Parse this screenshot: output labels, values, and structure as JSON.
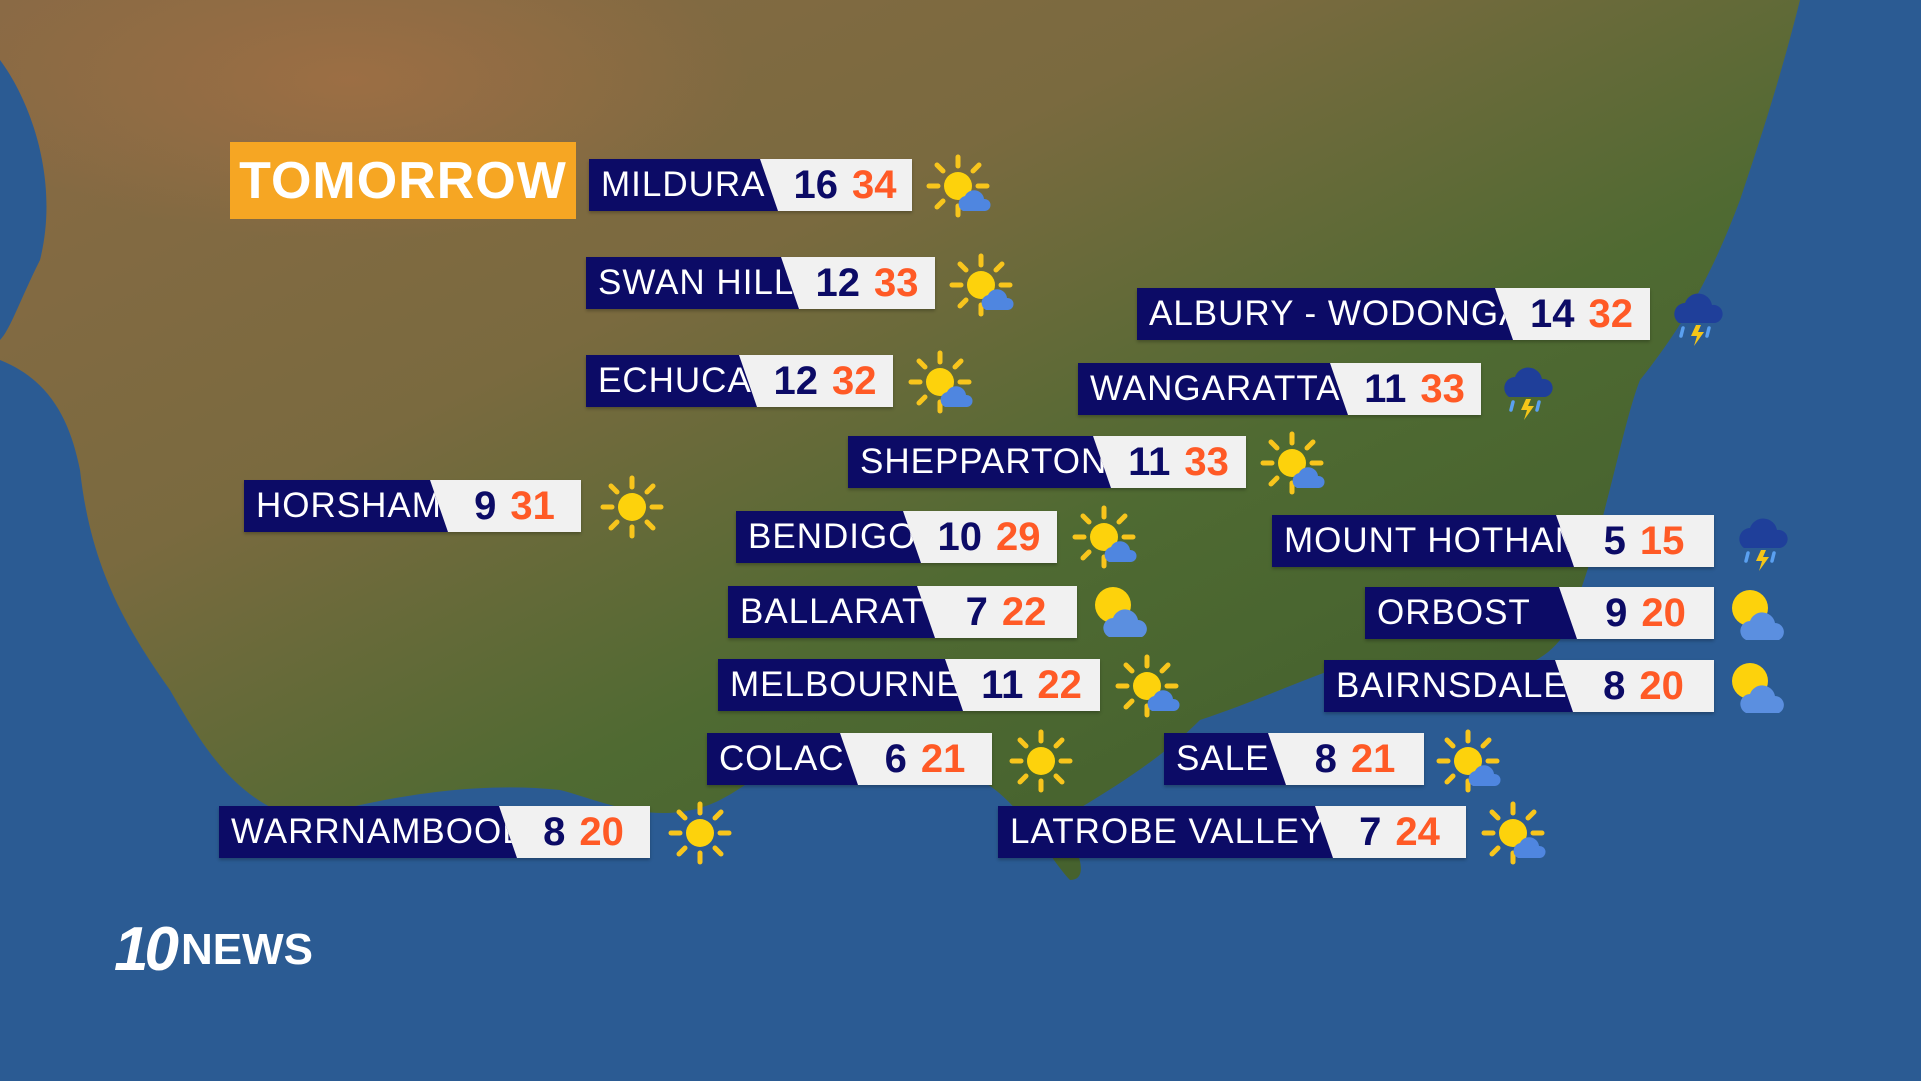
{
  "header": {
    "title": "TOMORROW"
  },
  "brand": {
    "number": "10",
    "name": "NEWS"
  },
  "colors": {
    "name_bg": "#0c0b66",
    "low_temp": "#0c0b66",
    "high_temp": "#ff5a26",
    "title_bg": "#f6a623"
  },
  "locations": [
    {
      "name": "MILDURA",
      "low": "16",
      "high": "34",
      "icon": "sun-with-cloud"
    },
    {
      "name": "SWAN HILL",
      "low": "12",
      "high": "33",
      "icon": "sun-with-cloud"
    },
    {
      "name": "ECHUCA",
      "low": "12",
      "high": "32",
      "icon": "sun-with-cloud"
    },
    {
      "name": "ALBURY - WODONGA",
      "low": "14",
      "high": "32",
      "icon": "thunderstorm"
    },
    {
      "name": "WANGARATTA",
      "low": "11",
      "high": "33",
      "icon": "thunderstorm"
    },
    {
      "name": "SHEPPARTON",
      "low": "11",
      "high": "33",
      "icon": "sun-with-cloud"
    },
    {
      "name": "HORSHAM",
      "low": "9",
      "high": "31",
      "icon": "sunny"
    },
    {
      "name": "BENDIGO",
      "low": "10",
      "high": "29",
      "icon": "sun-with-cloud"
    },
    {
      "name": "MOUNT HOTHAM",
      "low": "5",
      "high": "15",
      "icon": "thunderstorm"
    },
    {
      "name": "BALLARAT",
      "low": "7",
      "high": "22",
      "icon": "partly-cloudy"
    },
    {
      "name": "ORBOST",
      "low": "9",
      "high": "20",
      "icon": "partly-cloudy"
    },
    {
      "name": "MELBOURNE",
      "low": "11",
      "high": "22",
      "icon": "sun-with-cloud"
    },
    {
      "name": "BAIRNSDALE",
      "low": "8",
      "high": "20",
      "icon": "partly-cloudy"
    },
    {
      "name": "COLAC",
      "low": "6",
      "high": "21",
      "icon": "sunny"
    },
    {
      "name": "SALE",
      "low": "8",
      "high": "21",
      "icon": "sun-with-cloud"
    },
    {
      "name": "WARRNAMBOOL",
      "low": "8",
      "high": "20",
      "icon": "sunny"
    },
    {
      "name": "LATROBE VALLEY",
      "low": "7",
      "high": "24",
      "icon": "sun-with-cloud"
    }
  ]
}
